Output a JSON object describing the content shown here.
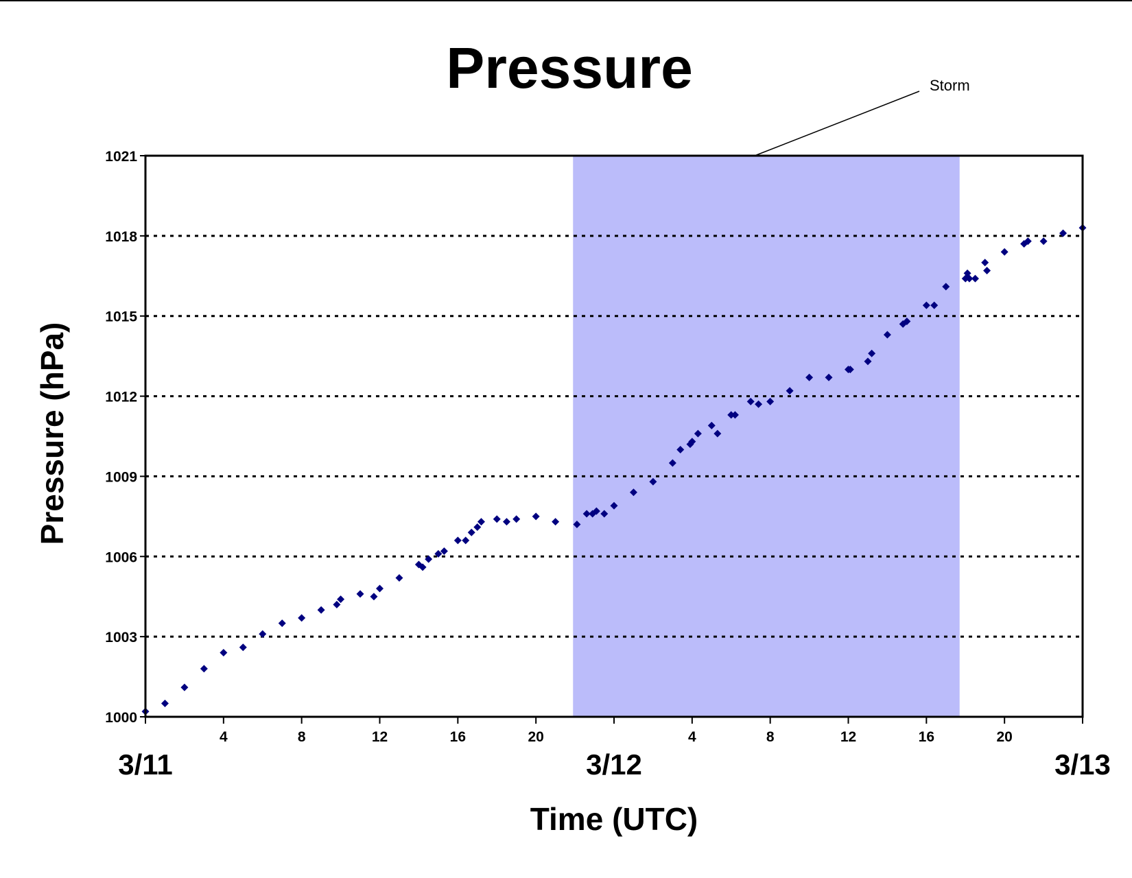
{
  "chart_data": {
    "type": "scatter",
    "title": "Pressure",
    "xlabel": "Time (UTC)",
    "ylabel": "Pressure (hPa)",
    "ylim": [
      1000,
      1021
    ],
    "yticks": [
      1000,
      1003,
      1006,
      1009,
      1012,
      1015,
      1018,
      1021
    ],
    "xlim": [
      0,
      48
    ],
    "x_minor_tick_labels": [
      {
        "x": 4,
        "label": "4"
      },
      {
        "x": 8,
        "label": "8"
      },
      {
        "x": 12,
        "label": "12"
      },
      {
        "x": 16,
        "label": "16"
      },
      {
        "x": 20,
        "label": "20"
      },
      {
        "x": 28,
        "label": "4"
      },
      {
        "x": 32,
        "label": "8"
      },
      {
        "x": 36,
        "label": "12"
      },
      {
        "x": 40,
        "label": "16"
      },
      {
        "x": 44,
        "label": "20"
      }
    ],
    "x_date_labels": [
      {
        "x": 0,
        "label": "3/11"
      },
      {
        "x": 24,
        "label": "3/12"
      },
      {
        "x": 48,
        "label": "3/13"
      }
    ],
    "grid": "horizontal dotted",
    "storm_band": {
      "label": "Storm",
      "x_start": 21.9,
      "x_end": 41.7,
      "color": "#bbbcfa"
    },
    "marker_color": "#000080",
    "series": [
      {
        "name": "",
        "points": [
          [
            0,
            1000.2
          ],
          [
            1,
            1000.5
          ],
          [
            2,
            1001.1
          ],
          [
            3,
            1001.8
          ],
          [
            4,
            1002.4
          ],
          [
            5,
            1002.6
          ],
          [
            6,
            1003.1
          ],
          [
            7,
            1003.5
          ],
          [
            8,
            1003.7
          ],
          [
            9,
            1004.0
          ],
          [
            9.8,
            1004.2
          ],
          [
            10,
            1004.4
          ],
          [
            11,
            1004.6
          ],
          [
            11.7,
            1004.5
          ],
          [
            12,
            1004.8
          ],
          [
            13,
            1005.2
          ],
          [
            14,
            1005.7
          ],
          [
            14.2,
            1005.6
          ],
          [
            14.5,
            1005.9
          ],
          [
            15,
            1006.1
          ],
          [
            15.3,
            1006.2
          ],
          [
            16,
            1006.6
          ],
          [
            16.4,
            1006.6
          ],
          [
            16.7,
            1006.9
          ],
          [
            17,
            1007.1
          ],
          [
            17.2,
            1007.3
          ],
          [
            18,
            1007.4
          ],
          [
            18.5,
            1007.3
          ],
          [
            19,
            1007.4
          ],
          [
            20,
            1007.5
          ],
          [
            21,
            1007.3
          ],
          [
            22.1,
            1007.2
          ],
          [
            22.6,
            1007.6
          ],
          [
            22.9,
            1007.6
          ],
          [
            23.1,
            1007.7
          ],
          [
            23.5,
            1007.6
          ],
          [
            24,
            1007.9
          ],
          [
            25,
            1008.4
          ],
          [
            26,
            1008.8
          ],
          [
            27,
            1009.5
          ],
          [
            27.4,
            1010.0
          ],
          [
            27.9,
            1010.2
          ],
          [
            28,
            1010.3
          ],
          [
            28.3,
            1010.6
          ],
          [
            29,
            1010.9
          ],
          [
            29.3,
            1010.6
          ],
          [
            30,
            1011.3
          ],
          [
            30.2,
            1011.3
          ],
          [
            31,
            1011.8
          ],
          [
            31.4,
            1011.7
          ],
          [
            32,
            1011.8
          ],
          [
            33,
            1012.2
          ],
          [
            34,
            1012.7
          ],
          [
            35,
            1012.7
          ],
          [
            36,
            1013.0
          ],
          [
            36.1,
            1013.0
          ],
          [
            37,
            1013.3
          ],
          [
            37.2,
            1013.6
          ],
          [
            38,
            1014.3
          ],
          [
            38.8,
            1014.7
          ],
          [
            39,
            1014.8
          ],
          [
            40,
            1015.4
          ],
          [
            40.4,
            1015.4
          ],
          [
            41,
            1016.1
          ],
          [
            42,
            1016.4
          ],
          [
            42.1,
            1016.6
          ],
          [
            42.2,
            1016.4
          ],
          [
            42.5,
            1016.4
          ],
          [
            43,
            1017.0
          ],
          [
            43.1,
            1016.7
          ],
          [
            44,
            1017.4
          ],
          [
            45,
            1017.7
          ],
          [
            45.2,
            1017.8
          ],
          [
            46,
            1017.8
          ],
          [
            47,
            1018.1
          ],
          [
            48,
            1018.3
          ]
        ]
      }
    ]
  }
}
